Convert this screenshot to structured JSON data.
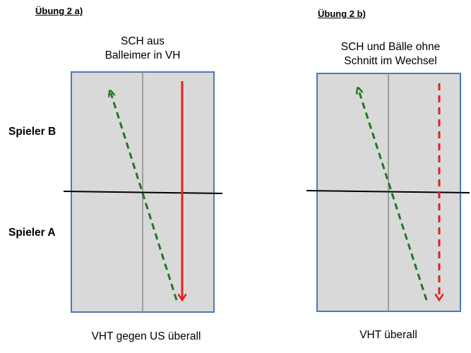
{
  "exercise_a": {
    "heading": "Übung 2 a)",
    "title": "SCH aus\nBalleimer in VH",
    "caption": "VHT gegen US überall"
  },
  "exercise_b": {
    "heading": "Übung 2 b)",
    "title": "SCH und Bälle ohne\nSchnitt im Wechsel",
    "caption": "VHT überall"
  },
  "players": {
    "b": "Spieler B",
    "a": "Spieler A"
  },
  "colors": {
    "court_fill": "#d9d9d9",
    "court_border": "#4a7ab5",
    "center_line": "#8c8c8c",
    "net": "#000000",
    "green_arrow": "#1e7a1e",
    "red_arrow": "#e02020"
  }
}
